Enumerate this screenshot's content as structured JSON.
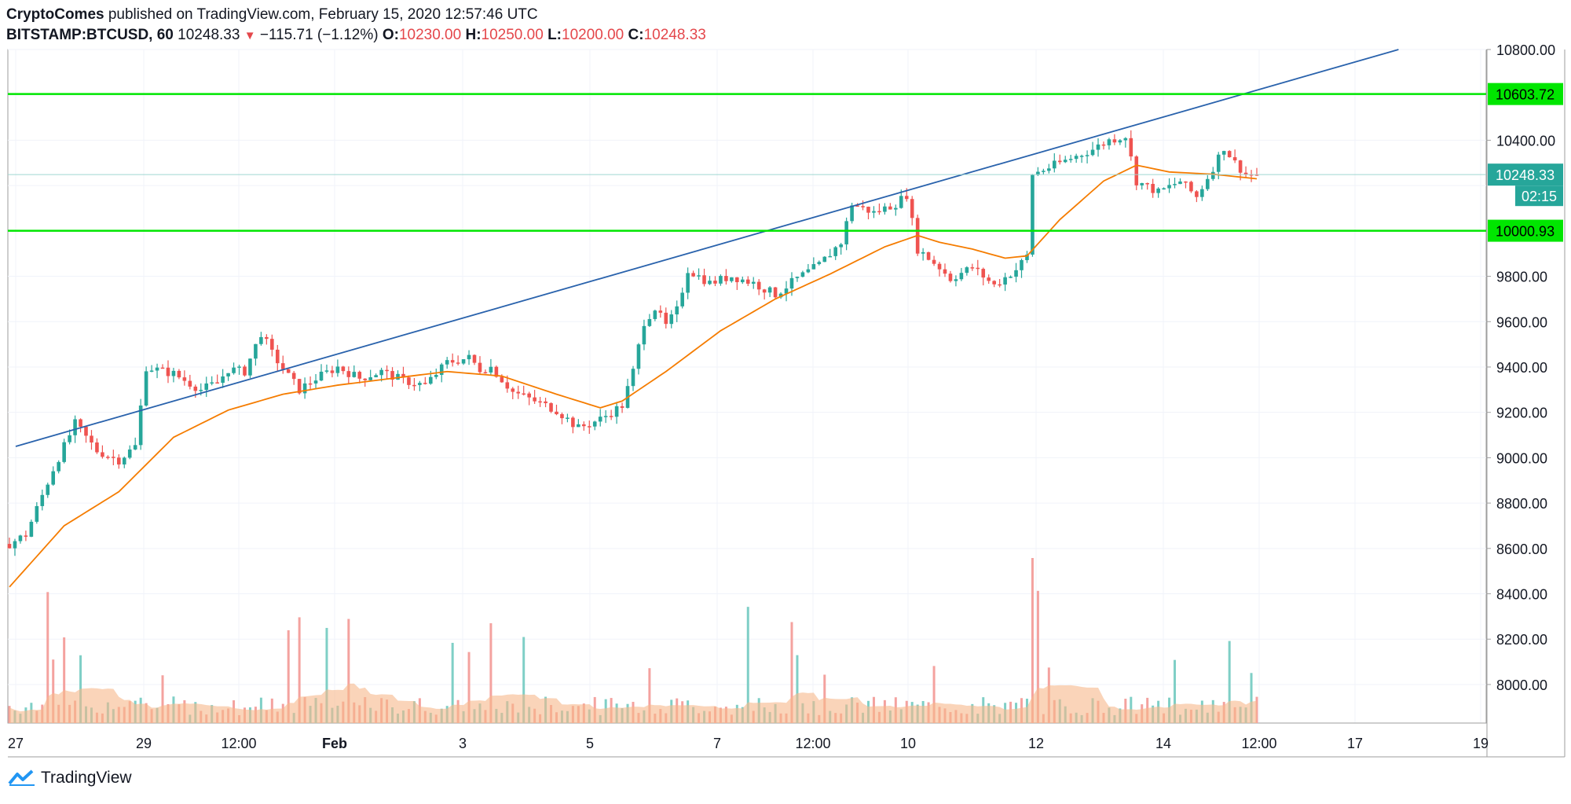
{
  "header": {
    "publisher": "CryptoComes",
    "published_text": " published on TradingView.com, February 15, 2020 12:57:46 UTC",
    "symbol": "BITSTAMP:BTCUSD, 60",
    "last": "10248.33",
    "change": "−115.71 (−1.12%)",
    "o_label": "O:",
    "o_value": "10230.00",
    "h_label": "H:",
    "h_value": "10250.00",
    "l_label": "L:",
    "l_value": "10200.00",
    "c_label": "C:",
    "c_value": "10248.33"
  },
  "footer": {
    "brand": "TradingView"
  },
  "colors": {
    "up": "#26a69a",
    "down": "#ef5350",
    "ma": "#f57c00",
    "trendline": "#2962ac",
    "level": "#00e600",
    "price_badge": "#26a69a",
    "volume_ma": "#f7b78a"
  },
  "chart_data": {
    "type": "candlestick",
    "y_axis_ticks": [
      "10800.00",
      "10400.00",
      "9800.00",
      "9600.00",
      "9400.00",
      "9200.00",
      "9000.00",
      "8800.00",
      "8600.00",
      "8400.00",
      "8200.00",
      "8000.00"
    ],
    "ylim": [
      7830,
      10800
    ],
    "x_axis_ticks": [
      "27",
      "29",
      "12:00",
      "Feb",
      "3",
      "5",
      "7",
      "12:00",
      "10",
      "12",
      "14",
      "12:00",
      "17",
      "19"
    ],
    "levels": [
      {
        "label": "10603.72",
        "value": 10603.72
      },
      {
        "label": "10000.93",
        "value": 10000.93
      }
    ],
    "current_price": {
      "label": "10248.33",
      "value": 10248.33,
      "countdown": "02:15"
    },
    "trendline": {
      "start": {
        "date": "2020-01-27 00:00",
        "price": 9050
      },
      "end": {
        "date": "2020-02-17 16:00",
        "price": 10800
      }
    },
    "price_path": [
      [
        0,
        8620
      ],
      [
        3,
        8660
      ],
      [
        8,
        8950
      ],
      [
        12,
        9150
      ],
      [
        16,
        9030
      ],
      [
        20,
        8990
      ],
      [
        23,
        9050
      ],
      [
        25,
        9400
      ],
      [
        30,
        9370
      ],
      [
        35,
        9300
      ],
      [
        38,
        9330
      ],
      [
        40,
        9390
      ],
      [
        43,
        9380
      ],
      [
        46,
        9550
      ],
      [
        48,
        9460
      ],
      [
        51,
        9360
      ],
      [
        53,
        9300
      ],
      [
        56,
        9350
      ],
      [
        60,
        9400
      ],
      [
        64,
        9350
      ],
      [
        68,
        9380
      ],
      [
        72,
        9340
      ],
      [
        76,
        9320
      ],
      [
        80,
        9420
      ],
      [
        84,
        9440
      ],
      [
        86,
        9390
      ],
      [
        88,
        9400
      ],
      [
        92,
        9290
      ],
      [
        96,
        9250
      ],
      [
        100,
        9210
      ],
      [
        104,
        9130
      ],
      [
        108,
        9170
      ],
      [
        112,
        9230
      ],
      [
        114,
        9380
      ],
      [
        116,
        9600
      ],
      [
        118,
        9660
      ],
      [
        120,
        9580
      ],
      [
        122,
        9650
      ],
      [
        124,
        9830
      ],
      [
        128,
        9770
      ],
      [
        132,
        9800
      ],
      [
        136,
        9770
      ],
      [
        140,
        9720
      ],
      [
        144,
        9790
      ],
      [
        148,
        9850
      ],
      [
        152,
        9950
      ],
      [
        154,
        10120
      ],
      [
        158,
        10080
      ],
      [
        162,
        10120
      ],
      [
        164,
        10160
      ],
      [
        166,
        9920
      ],
      [
        170,
        9840
      ],
      [
        172,
        9790
      ],
      [
        176,
        9840
      ],
      [
        180,
        9760
      ],
      [
        184,
        9830
      ],
      [
        186,
        9890
      ],
      [
        187,
        10250
      ],
      [
        190,
        10280
      ],
      [
        194,
        10320
      ],
      [
        198,
        10360
      ],
      [
        201,
        10400
      ],
      [
        204,
        10420
      ],
      [
        206,
        10220
      ],
      [
        210,
        10170
      ],
      [
        214,
        10220
      ],
      [
        217,
        10150
      ],
      [
        220,
        10280
      ],
      [
        222,
        10370
      ],
      [
        224,
        10300
      ],
      [
        226,
        10250
      ],
      [
        228,
        10248
      ]
    ],
    "ma_path": [
      [
        0,
        8430
      ],
      [
        10,
        8700
      ],
      [
        20,
        8850
      ],
      [
        30,
        9090
      ],
      [
        40,
        9210
      ],
      [
        50,
        9280
      ],
      [
        60,
        9320
      ],
      [
        70,
        9350
      ],
      [
        80,
        9380
      ],
      [
        90,
        9360
      ],
      [
        100,
        9280
      ],
      [
        108,
        9220
      ],
      [
        112,
        9250
      ],
      [
        120,
        9380
      ],
      [
        130,
        9560
      ],
      [
        140,
        9700
      ],
      [
        150,
        9810
      ],
      [
        160,
        9930
      ],
      [
        166,
        9980
      ],
      [
        170,
        9950
      ],
      [
        176,
        9920
      ],
      [
        182,
        9880
      ],
      [
        186,
        9890
      ],
      [
        192,
        10050
      ],
      [
        200,
        10220
      ],
      [
        206,
        10290
      ],
      [
        212,
        10260
      ],
      [
        220,
        10250
      ],
      [
        228,
        10230
      ]
    ]
  }
}
